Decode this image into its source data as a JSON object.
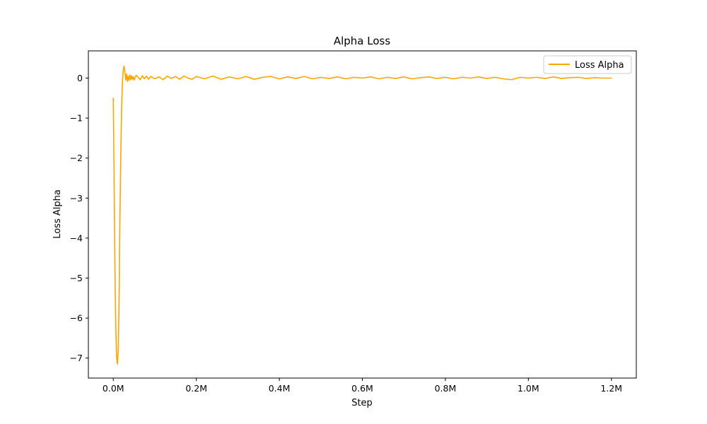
{
  "chart_data": {
    "type": "line",
    "title": "Alpha Loss",
    "xlabel": "Step",
    "ylabel": "Loss Alpha",
    "xlim": [
      -60000,
      1260000
    ],
    "ylim": [
      -7.5,
      0.68
    ],
    "xticks": [
      0,
      200000,
      400000,
      600000,
      800000,
      1000000,
      1200000
    ],
    "xtick_labels": [
      "0.0M",
      "0.2M",
      "0.4M",
      "0.6M",
      "0.8M",
      "1.0M",
      "1.2M"
    ],
    "yticks": [
      0,
      -1,
      -2,
      -3,
      -4,
      -5,
      -6,
      -7
    ],
    "ytick_labels": [
      "0",
      "−1",
      "−2",
      "−3",
      "−4",
      "−5",
      "−6",
      "−7"
    ],
    "legend": {
      "position": "top-right",
      "entries": [
        "Loss Alpha"
      ]
    },
    "grid": false,
    "series": [
      {
        "name": "Loss Alpha",
        "color": "#ffa500",
        "x": [
          0,
          2000,
          4000,
          6000,
          8000,
          10000,
          12000,
          14000,
          16000,
          18000,
          20000,
          22000,
          24000,
          26000,
          28000,
          30000,
          32000,
          34000,
          36000,
          38000,
          40000,
          42000,
          44000,
          46000,
          48000,
          50000,
          55000,
          60000,
          65000,
          70000,
          75000,
          80000,
          85000,
          90000,
          100000,
          110000,
          120000,
          130000,
          140000,
          150000,
          160000,
          170000,
          180000,
          190000,
          200000,
          220000,
          240000,
          260000,
          280000,
          300000,
          320000,
          340000,
          360000,
          380000,
          400000,
          420000,
          440000,
          460000,
          480000,
          500000,
          520000,
          540000,
          560000,
          580000,
          600000,
          620000,
          640000,
          660000,
          680000,
          700000,
          720000,
          740000,
          760000,
          780000,
          800000,
          820000,
          840000,
          860000,
          880000,
          900000,
          920000,
          940000,
          960000,
          980000,
          1000000,
          1020000,
          1040000,
          1060000,
          1080000,
          1100000,
          1120000,
          1140000,
          1160000,
          1180000,
          1200000
        ],
        "y": [
          -0.5,
          -2.5,
          -4.8,
          -6.2,
          -7.0,
          -7.15,
          -6.8,
          -5.5,
          -3.5,
          -2.0,
          -0.8,
          -0.1,
          0.2,
          0.3,
          0.15,
          -0.05,
          0.1,
          -0.08,
          0.05,
          -0.06,
          0.08,
          -0.04,
          0.06,
          -0.03,
          0.04,
          -0.05,
          0.07,
          0.02,
          -0.04,
          0.06,
          -0.02,
          0.05,
          -0.03,
          0.04,
          -0.02,
          0.03,
          -0.04,
          0.05,
          -0.01,
          0.04,
          -0.03,
          0.05,
          0.0,
          -0.03,
          0.04,
          -0.02,
          0.05,
          -0.03,
          0.03,
          -0.02,
          0.04,
          -0.03,
          0.02,
          0.04,
          -0.02,
          0.03,
          -0.01,
          0.04,
          -0.02,
          0.02,
          -0.01,
          0.03,
          -0.02,
          0.02,
          0.0,
          0.03,
          -0.02,
          0.02,
          -0.01,
          0.03,
          -0.02,
          0.01,
          0.03,
          -0.01,
          0.02,
          -0.02,
          0.02,
          0.0,
          0.03,
          -0.01,
          0.02,
          -0.02,
          -0.04,
          0.02,
          0.0,
          0.02,
          -0.01,
          0.03,
          -0.01,
          0.01,
          0.02,
          -0.01,
          0.01,
          0.0,
          0.0
        ]
      }
    ]
  }
}
